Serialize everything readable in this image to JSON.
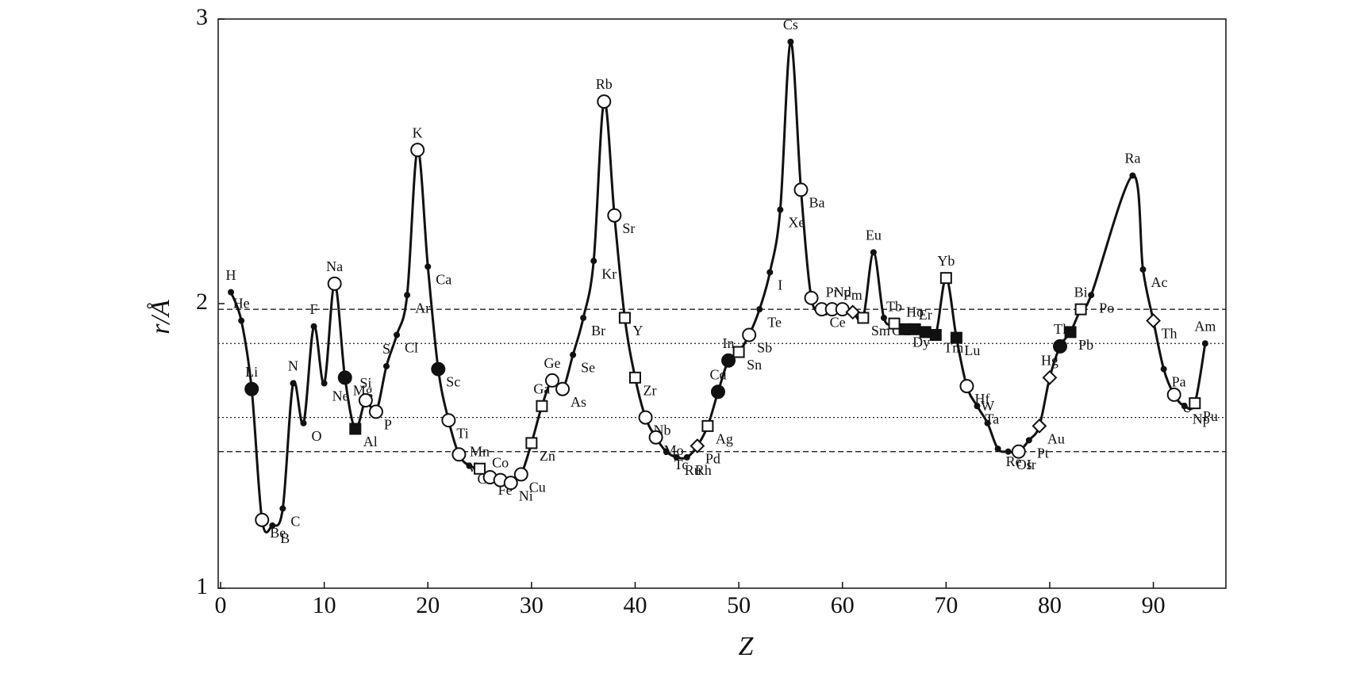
{
  "chart_data": {
    "type": "line",
    "x_label": "Z",
    "y_label": "r/Å",
    "xlim": [
      0,
      97
    ],
    "ylim": [
      1,
      3
    ],
    "xticks": [
      0,
      10,
      20,
      30,
      40,
      50,
      60,
      70,
      80,
      90
    ],
    "yticks": [
      1,
      2,
      3
    ],
    "hlines": [
      {
        "value": 1.98,
        "style": "dashed"
      },
      {
        "value": 1.86,
        "style": "dotted"
      },
      {
        "value": 1.6,
        "style": "dotted"
      },
      {
        "value": 1.48,
        "style": "dashed"
      }
    ],
    "series": [
      {
        "color": "#111111",
        "labels": [
          "H",
          "He",
          "Li",
          "Be",
          "B",
          "C",
          "N",
          "O",
          "F",
          "Ne",
          "Na",
          "Mg",
          "Al",
          "Si",
          "P",
          "S",
          "Cl",
          "Ar",
          "K",
          "Ca",
          "Sc",
          "Ti",
          "V",
          "Cr",
          "Mn",
          "Fe",
          "Co",
          "Ni",
          "Cu",
          "Zn",
          "Ga",
          "Ge",
          "As",
          "Se",
          "Br",
          "Kr",
          "Rb",
          "Sr",
          "Y",
          "Zr",
          "Nb",
          "Mo",
          "Tc",
          "Ru",
          "Rh",
          "Pd",
          "Ag",
          "Cd",
          "In",
          "Sn",
          "Sb",
          "Te",
          "I",
          "Xe",
          "Cs",
          "Ba",
          "La",
          "Ce",
          "Pr",
          "Nd",
          "Pm",
          "Sm",
          "Eu",
          "Gd",
          "Tb",
          "Dy",
          "Ho",
          "Er",
          "Tm",
          "Yb",
          "Lu",
          "Hf",
          "Ta",
          "W",
          "Re",
          "Os",
          "Ir",
          "Pt",
          "Au",
          "Hg",
          "Tl",
          "Pb",
          "Bi",
          "Po",
          "Ra",
          "Ac",
          "Th",
          "Pa",
          "U",
          "Np",
          "Pu",
          "Am"
        ],
        "x": [
          1,
          2,
          3,
          4,
          5,
          6,
          7,
          8,
          9,
          10,
          11,
          12,
          13,
          14,
          15,
          16,
          17,
          18,
          19,
          20,
          21,
          22,
          23,
          24,
          25,
          26,
          27,
          28,
          29,
          30,
          31,
          32,
          33,
          34,
          35,
          36,
          37,
          38,
          39,
          40,
          41,
          42,
          43,
          44,
          45,
          46,
          47,
          48,
          49,
          50,
          51,
          52,
          53,
          54,
          55,
          56,
          57,
          58,
          59,
          60,
          61,
          62,
          63,
          64,
          65,
          66,
          67,
          68,
          69,
          70,
          71,
          72,
          73,
          74,
          75,
          76,
          77,
          78,
          79,
          80,
          81,
          82,
          83,
          84,
          88,
          89,
          90,
          91,
          92,
          93,
          94,
          95
        ],
        "values": [
          2.04,
          1.94,
          1.7,
          1.24,
          1.22,
          1.28,
          1.72,
          1.58,
          1.92,
          1.72,
          2.07,
          1.74,
          1.56,
          1.66,
          1.62,
          1.78,
          1.89,
          2.03,
          2.54,
          2.13,
          1.77,
          1.59,
          1.47,
          1.43,
          1.42,
          1.39,
          1.38,
          1.37,
          1.4,
          1.51,
          1.64,
          1.73,
          1.7,
          1.82,
          1.95,
          2.15,
          2.71,
          2.31,
          1.95,
          1.74,
          1.6,
          1.53,
          1.48,
          1.46,
          1.46,
          1.5,
          1.57,
          1.69,
          1.8,
          1.83,
          1.89,
          1.98,
          2.11,
          2.33,
          2.92,
          2.4,
          2.02,
          1.98,
          1.98,
          1.98,
          1.97,
          1.95,
          2.18,
          1.95,
          1.93,
          1.91,
          1.91,
          1.9,
          1.89,
          2.09,
          1.88,
          1.71,
          1.64,
          1.58,
          1.49,
          1.48,
          1.48,
          1.52,
          1.57,
          1.74,
          1.85,
          1.9,
          1.98,
          2.03,
          2.45,
          2.12,
          1.94,
          1.77,
          1.68,
          1.64,
          1.65,
          1.86
        ],
        "markers": [
          "dot",
          "dot",
          "filled-circle",
          "circle",
          "dot",
          "dot",
          "dot",
          "dot",
          "dot",
          "dot",
          "circle",
          "filled-circle",
          "filled-square",
          "circle",
          "circle",
          "dot",
          "dot",
          "dot",
          "circle",
          "dot",
          "filled-circle",
          "circle",
          "circle",
          "dot",
          "square",
          "circle",
          "circle",
          "circle",
          "circle",
          "square",
          "square",
          "circle",
          "circle",
          "dot",
          "dot",
          "dot",
          "circle",
          "circle",
          "square",
          "square",
          "circle",
          "circle",
          "dot",
          "dot",
          "dot",
          "diamond",
          "square",
          "filled-circle",
          "filled-circle",
          "square",
          "circle",
          "dot",
          "dot",
          "dot",
          "dot",
          "circle",
          "circle",
          "circle",
          "circle",
          "circle",
          "diamond",
          "square",
          "dot",
          "dot",
          "square",
          "filled-square",
          "filled-square",
          "filled-square",
          "filled-square",
          "square",
          "filled-square",
          "circle",
          "dot",
          "dot",
          "dot",
          "dot",
          "circle",
          "dot",
          "diamond",
          "diamond",
          "filled-circle",
          "filled-square",
          "square",
          "dot",
          "dot",
          "dot",
          "diamond",
          "dot",
          "circle",
          "dot",
          "square",
          "dot"
        ]
      }
    ]
  }
}
